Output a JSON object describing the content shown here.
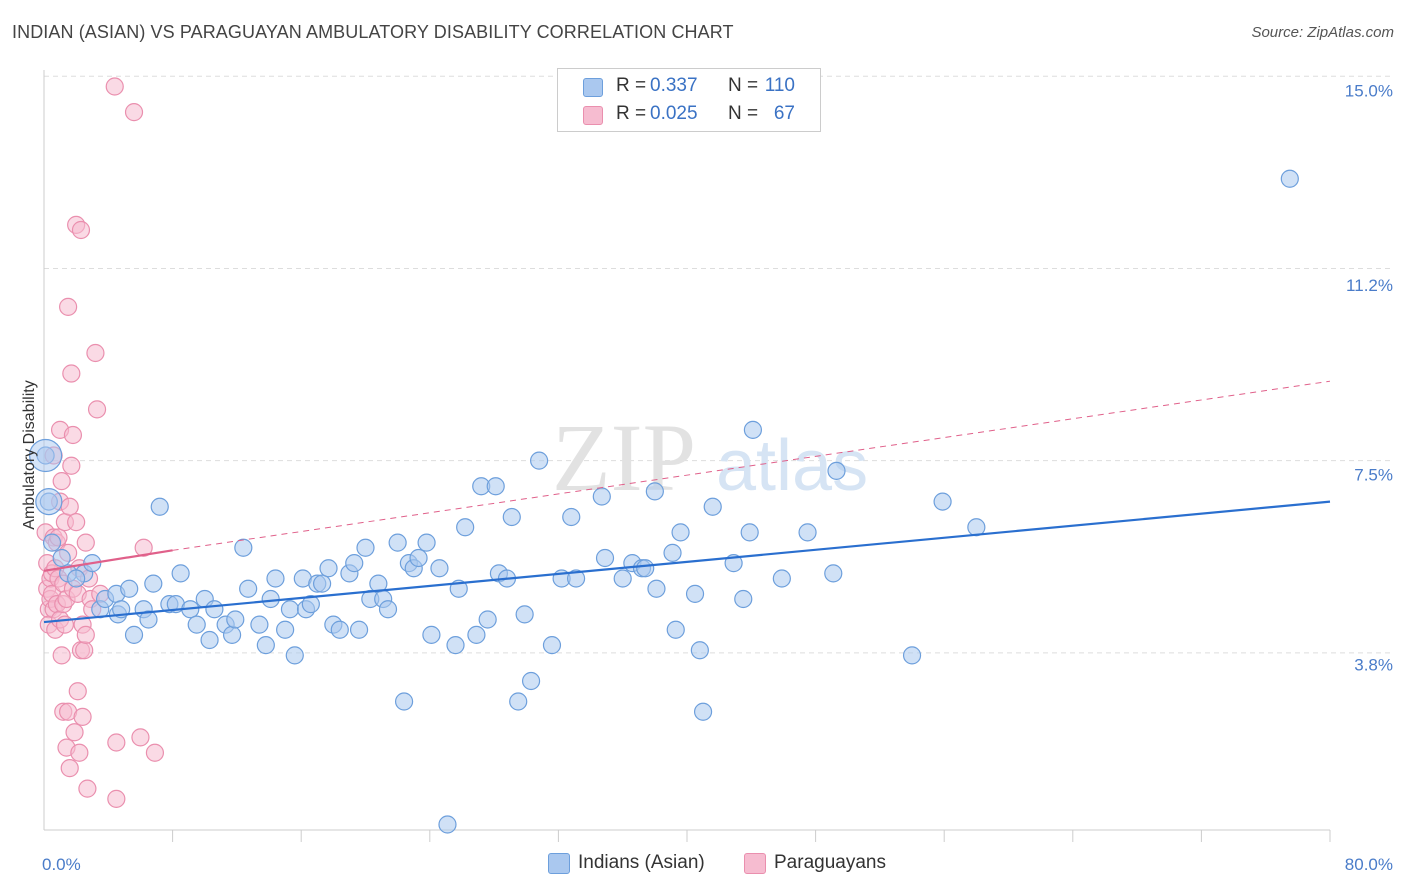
{
  "title": "INDIAN (ASIAN) VS PARAGUAYAN AMBULATORY DISABILITY CORRELATION CHART",
  "source": "Source: ZipAtlas.com",
  "watermark": {
    "zip": "ZIP",
    "atlas": "atlas"
  },
  "colors": {
    "blue_fill": "#aac8ef",
    "blue_stroke": "#6d9fdc",
    "blue_line": "#2a6fcf",
    "pink_fill": "#f6bcd0",
    "pink_stroke": "#ea8fae",
    "pink_line": "#e0608a",
    "grid": "#dddddd",
    "tick_text": "#4a7cc9"
  },
  "legend": {
    "rows": [
      {
        "r_label": "R =",
        "r_value": "0.337",
        "n_label": "N =",
        "n_value": "110"
      },
      {
        "r_label": "R =",
        "r_value": "0.025",
        "n_label": "N =",
        "n_value": "67"
      }
    ]
  },
  "bottom_legend": [
    {
      "label": "Indians (Asian)"
    },
    {
      "label": "Paraguayans"
    }
  ],
  "chart_data": {
    "type": "scatter",
    "title": "INDIAN (ASIAN) VS PARAGUAYAN AMBULATORY DISABILITY CORRELATION CHART",
    "xlabel": "",
    "ylabel": "Ambulatory Disability",
    "xlim": [
      0,
      80
    ],
    "ylim": [
      0,
      15.6
    ],
    "x_tick_labels": [
      "0.0%",
      "80.0%"
    ],
    "y_ticks": [
      3.8,
      7.5,
      11.2,
      15.0
    ],
    "y_tick_labels": [
      "3.8%",
      "7.5%",
      "11.2%",
      "15.0%"
    ],
    "series": [
      {
        "name": "Indians (Asian)",
        "r": 0.337,
        "n": 110,
        "trend": {
          "x": [
            0,
            80
          ],
          "y": [
            4.35,
            6.7
          ],
          "style": "solid"
        },
        "points": [
          [
            0.1,
            7.6
          ],
          [
            0.3,
            6.7
          ],
          [
            0.5,
            5.9
          ],
          [
            1.1,
            5.6
          ],
          [
            1.5,
            5.3
          ],
          [
            2.5,
            5.3
          ],
          [
            2.0,
            5.2
          ],
          [
            3.0,
            5.5
          ],
          [
            3.5,
            4.6
          ],
          [
            3.8,
            4.8
          ],
          [
            4.5,
            4.9
          ],
          [
            4.6,
            4.5
          ],
          [
            4.8,
            4.6
          ],
          [
            5.3,
            5.0
          ],
          [
            5.6,
            4.1
          ],
          [
            6.2,
            4.6
          ],
          [
            6.5,
            4.4
          ],
          [
            6.8,
            5.1
          ],
          [
            7.2,
            6.6
          ],
          [
            7.8,
            4.7
          ],
          [
            8.2,
            4.7
          ],
          [
            8.5,
            5.3
          ],
          [
            9.1,
            4.6
          ],
          [
            9.5,
            4.3
          ],
          [
            10.0,
            4.8
          ],
          [
            10.3,
            4.0
          ],
          [
            10.6,
            4.6
          ],
          [
            11.3,
            4.3
          ],
          [
            11.7,
            4.1
          ],
          [
            11.9,
            4.4
          ],
          [
            12.4,
            5.8
          ],
          [
            12.7,
            5.0
          ],
          [
            13.4,
            4.3
          ],
          [
            13.8,
            3.9
          ],
          [
            14.1,
            4.8
          ],
          [
            14.4,
            5.2
          ],
          [
            15.0,
            4.2
          ],
          [
            15.3,
            4.6
          ],
          [
            15.6,
            3.7
          ],
          [
            16.1,
            5.2
          ],
          [
            16.3,
            4.6
          ],
          [
            16.6,
            4.7
          ],
          [
            17.0,
            5.1
          ],
          [
            17.3,
            5.1
          ],
          [
            17.7,
            5.4
          ],
          [
            18.0,
            4.3
          ],
          [
            18.4,
            4.2
          ],
          [
            19.0,
            5.3
          ],
          [
            19.3,
            5.5
          ],
          [
            19.6,
            4.2
          ],
          [
            20.0,
            5.8
          ],
          [
            20.3,
            4.8
          ],
          [
            20.8,
            5.1
          ],
          [
            21.1,
            4.8
          ],
          [
            21.4,
            4.6
          ],
          [
            22.0,
            5.9
          ],
          [
            22.4,
            2.8
          ],
          [
            22.7,
            5.5
          ],
          [
            23.0,
            5.4
          ],
          [
            23.3,
            5.6
          ],
          [
            23.8,
            5.9
          ],
          [
            24.1,
            4.1
          ],
          [
            24.6,
            5.4
          ],
          [
            25.1,
            0.4
          ],
          [
            25.6,
            3.9
          ],
          [
            25.8,
            5.0
          ],
          [
            26.2,
            6.2
          ],
          [
            26.9,
            4.1
          ],
          [
            27.2,
            7.0
          ],
          [
            27.6,
            4.4
          ],
          [
            28.1,
            7.0
          ],
          [
            28.3,
            5.3
          ],
          [
            28.8,
            5.2
          ],
          [
            29.1,
            6.4
          ],
          [
            29.5,
            2.8
          ],
          [
            29.9,
            4.5
          ],
          [
            30.3,
            3.2
          ],
          [
            30.8,
            7.5
          ],
          [
            31.6,
            3.9
          ],
          [
            32.2,
            5.2
          ],
          [
            32.8,
            6.4
          ],
          [
            33.1,
            5.2
          ],
          [
            34.7,
            6.8
          ],
          [
            34.9,
            5.6
          ],
          [
            36.0,
            5.2
          ],
          [
            36.6,
            5.5
          ],
          [
            37.2,
            5.4
          ],
          [
            37.4,
            5.4
          ],
          [
            38.0,
            6.9
          ],
          [
            38.1,
            5.0
          ],
          [
            39.1,
            5.7
          ],
          [
            39.3,
            4.2
          ],
          [
            39.6,
            6.1
          ],
          [
            40.5,
            4.9
          ],
          [
            40.8,
            3.8
          ],
          [
            41.0,
            2.6
          ],
          [
            41.6,
            6.6
          ],
          [
            42.9,
            5.5
          ],
          [
            43.5,
            4.8
          ],
          [
            43.9,
            6.1
          ],
          [
            44.1,
            8.1
          ],
          [
            45.9,
            5.2
          ],
          [
            47.5,
            6.1
          ],
          [
            49.1,
            5.3
          ],
          [
            49.3,
            7.3
          ],
          [
            54.0,
            3.7
          ],
          [
            55.9,
            6.7
          ],
          [
            58.0,
            6.2
          ],
          [
            77.5,
            13.0
          ]
        ]
      },
      {
        "name": "Paraguayans",
        "r": 0.025,
        "n": 67,
        "trend": {
          "x": [
            0,
            8
          ],
          "y": [
            5.35,
            5.75
          ],
          "style": "solid"
        },
        "trend_extended": {
          "x": [
            8,
            80
          ],
          "y": [
            5.75,
            9.05
          ],
          "style": "dashed"
        },
        "points": [
          [
            0.1,
            6.1
          ],
          [
            0.2,
            5.5
          ],
          [
            0.2,
            5.0
          ],
          [
            0.3,
            4.6
          ],
          [
            0.3,
            4.3
          ],
          [
            0.4,
            5.2
          ],
          [
            0.4,
            4.8
          ],
          [
            0.5,
            5.3
          ],
          [
            0.5,
            4.9
          ],
          [
            0.6,
            6.0
          ],
          [
            0.6,
            4.6
          ],
          [
            0.6,
            7.6
          ],
          [
            0.7,
            5.4
          ],
          [
            0.7,
            4.2
          ],
          [
            0.8,
            5.9
          ],
          [
            0.8,
            4.7
          ],
          [
            0.9,
            6.0
          ],
          [
            0.9,
            5.2
          ],
          [
            1.0,
            4.4
          ],
          [
            1.0,
            8.1
          ],
          [
            1.0,
            6.7
          ],
          [
            1.1,
            3.7
          ],
          [
            1.1,
            7.1
          ],
          [
            1.2,
            5.1
          ],
          [
            1.2,
            4.7
          ],
          [
            1.2,
            2.6
          ],
          [
            1.3,
            4.3
          ],
          [
            1.3,
            6.3
          ],
          [
            1.4,
            4.8
          ],
          [
            1.4,
            1.9
          ],
          [
            1.5,
            5.7
          ],
          [
            1.5,
            2.6
          ],
          [
            1.6,
            6.6
          ],
          [
            1.6,
            1.5
          ],
          [
            1.7,
            7.4
          ],
          [
            1.7,
            9.2
          ],
          [
            1.8,
            8.0
          ],
          [
            1.8,
            5.0
          ],
          [
            1.9,
            2.2
          ],
          [
            2.0,
            12.1
          ],
          [
            2.0,
            6.3
          ],
          [
            2.1,
            4.9
          ],
          [
            2.1,
            3.0
          ],
          [
            2.2,
            5.4
          ],
          [
            2.2,
            1.8
          ],
          [
            2.3,
            12.0
          ],
          [
            2.3,
            3.8
          ],
          [
            2.4,
            4.3
          ],
          [
            2.4,
            2.5
          ],
          [
            2.5,
            3.8
          ],
          [
            2.6,
            5.9
          ],
          [
            2.7,
            1.1
          ],
          [
            2.8,
            5.2
          ],
          [
            2.9,
            4.8
          ],
          [
            3.0,
            4.6
          ],
          [
            3.2,
            9.6
          ],
          [
            3.3,
            8.5
          ],
          [
            3.5,
            4.9
          ],
          [
            4.4,
            14.8
          ],
          [
            4.5,
            0.9
          ],
          [
            4.5,
            2.0
          ],
          [
            5.6,
            14.3
          ],
          [
            6.0,
            2.1
          ],
          [
            6.2,
            5.8
          ],
          [
            6.9,
            1.8
          ],
          [
            1.5,
            10.5
          ],
          [
            2.6,
            4.1
          ]
        ]
      }
    ]
  }
}
